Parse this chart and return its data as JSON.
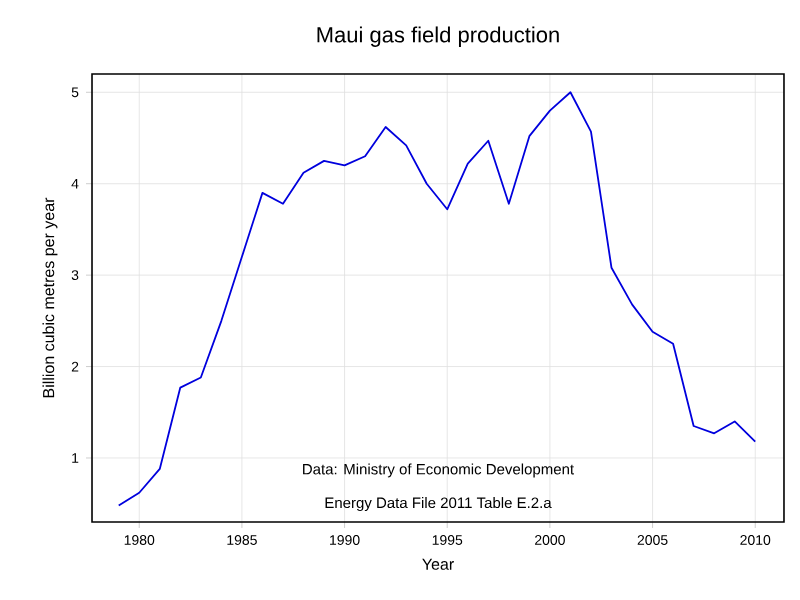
{
  "chart_data": {
    "type": "line",
    "title": "Maui gas field production",
    "xlabel": "Year",
    "ylabel": "Billion cubic metres per year",
    "annotations": [
      "Data: Ministry of Economic Development",
      "Energy Data File 2011 Table E.2.a"
    ],
    "x": [
      1979,
      1980,
      1981,
      1982,
      1983,
      1984,
      1985,
      1986,
      1987,
      1988,
      1989,
      1990,
      1991,
      1992,
      1993,
      1994,
      1995,
      1996,
      1997,
      1998,
      1999,
      2000,
      2001,
      2002,
      2003,
      2004,
      2005,
      2006,
      2007,
      2008,
      2009,
      2010
    ],
    "series": [
      {
        "color": "#0000dd",
        "values": [
          0.48,
          0.62,
          0.88,
          1.77,
          1.88,
          2.5,
          3.2,
          3.9,
          3.78,
          4.12,
          4.25,
          4.2,
          4.3,
          4.62,
          4.42,
          4.0,
          3.72,
          4.22,
          4.47,
          3.78,
          4.52,
          4.8,
          5.0,
          4.57,
          3.08,
          2.68,
          2.38,
          2.25,
          1.35,
          1.27,
          1.4,
          1.18
        ]
      }
    ],
    "xlim": [
      1977.7,
      2011.4
    ],
    "ylim": [
      0.3,
      5.2
    ],
    "xticks": [
      1980,
      1985,
      1990,
      1995,
      2000,
      2005,
      2010
    ],
    "yticks": [
      1,
      2,
      3,
      4,
      5
    ],
    "grid": true,
    "marker": "none",
    "line_style": "solid"
  }
}
